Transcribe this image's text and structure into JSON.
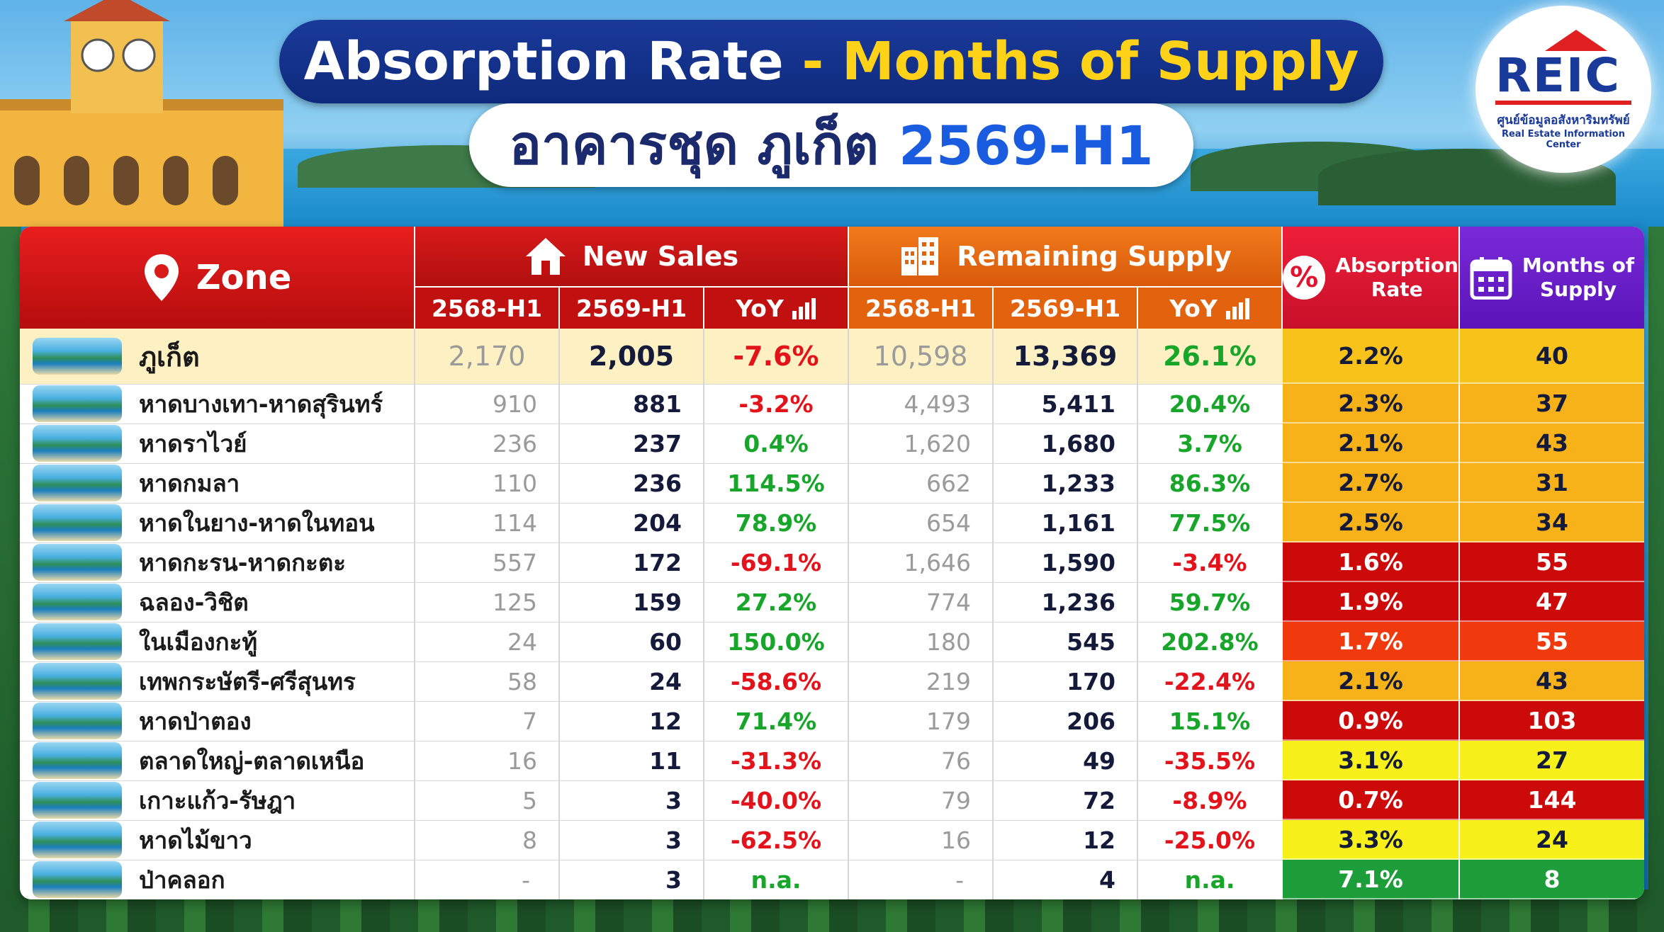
{
  "title": {
    "part1": "Absorption Rate",
    "dash": " - ",
    "part2": "Months of Supply"
  },
  "subtitle": {
    "thai": "อาคารชุด ภูเก็ต",
    "period": "2569-H1"
  },
  "logo": {
    "mark": "REIC",
    "thai": "ศูนย์ข้อมูลอสังหาริมทรัพย์",
    "english": "Real Estate Information Center"
  },
  "headers": {
    "zone": "Zone",
    "new_sales": "New Sales",
    "remaining_supply": "Remaining Supply",
    "absorption_rate": [
      "Absorption",
      "Rate"
    ],
    "months_of_supply": [
      "Months of",
      "Supply"
    ],
    "sub": [
      "2568-H1",
      "2569-H1",
      "YoY"
    ]
  },
  "colors": {
    "red_header": "#d81a1a",
    "orange_header": "#f27a1c",
    "purple_header": "#6a1fc8",
    "total_row": "#fdf0c2",
    "green": "#17a62a",
    "red": "#e3131b",
    "status_orange": "#f7b21a",
    "status_red": "#cc0a0a",
    "status_orangered": "#f03a0e",
    "status_yellow": "#f7f01a",
    "status_green": "#1e9e3a"
  },
  "chart_data": {
    "type": "table",
    "columns": [
      "Zone",
      "New Sales 2568-H1",
      "New Sales 2569-H1",
      "New Sales YoY",
      "Remaining Supply 2568-H1",
      "Remaining Supply 2569-H1",
      "Remaining Supply YoY",
      "Absorption Rate",
      "Months of Supply"
    ],
    "rows": [
      {
        "zone": "ภูเก็ต",
        "ns_prev": "2,170",
        "ns_cur": "2,005",
        "ns_yoy": "-7.6%",
        "rs_prev": "10,598",
        "rs_cur": "13,369",
        "rs_yoy": "26.1%",
        "ar": "2.2%",
        "mos": "40",
        "level": "total"
      },
      {
        "zone": "หาดบางเทา-หาดสุรินทร์",
        "ns_prev": "910",
        "ns_cur": "881",
        "ns_yoy": "-3.2%",
        "rs_prev": "4,493",
        "rs_cur": "5,411",
        "rs_yoy": "20.4%",
        "ar": "2.3%",
        "mos": "37",
        "level": "orange"
      },
      {
        "zone": "หาดราไวย์",
        "ns_prev": "236",
        "ns_cur": "237",
        "ns_yoy": "0.4%",
        "rs_prev": "1,620",
        "rs_cur": "1,680",
        "rs_yoy": "3.7%",
        "ar": "2.1%",
        "mos": "43",
        "level": "orange"
      },
      {
        "zone": "หาดกมลา",
        "ns_prev": "110",
        "ns_cur": "236",
        "ns_yoy": "114.5%",
        "rs_prev": "662",
        "rs_cur": "1,233",
        "rs_yoy": "86.3%",
        "ar": "2.7%",
        "mos": "31",
        "level": "orange"
      },
      {
        "zone": "หาดในยาง-หาดในทอน",
        "ns_prev": "114",
        "ns_cur": "204",
        "ns_yoy": "78.9%",
        "rs_prev": "654",
        "rs_cur": "1,161",
        "rs_yoy": "77.5%",
        "ar": "2.5%",
        "mos": "34",
        "level": "orange"
      },
      {
        "zone": "หาดกะรน-หาดกะตะ",
        "ns_prev": "557",
        "ns_cur": "172",
        "ns_yoy": "-69.1%",
        "rs_prev": "1,646",
        "rs_cur": "1,590",
        "rs_yoy": "-3.4%",
        "ar": "1.6%",
        "mos": "55",
        "level": "red"
      },
      {
        "zone": "ฉลอง-วิชิต",
        "ns_prev": "125",
        "ns_cur": "159",
        "ns_yoy": "27.2%",
        "rs_prev": "774",
        "rs_cur": "1,236",
        "rs_yoy": "59.7%",
        "ar": "1.9%",
        "mos": "47",
        "level": "red"
      },
      {
        "zone": "ในเมืองกะทู้",
        "ns_prev": "24",
        "ns_cur": "60",
        "ns_yoy": "150.0%",
        "rs_prev": "180",
        "rs_cur": "545",
        "rs_yoy": "202.8%",
        "ar": "1.7%",
        "mos": "55",
        "level": "orangered"
      },
      {
        "zone": "เทพกระษัตรี-ศรีสุนทร",
        "ns_prev": "58",
        "ns_cur": "24",
        "ns_yoy": "-58.6%",
        "rs_prev": "219",
        "rs_cur": "170",
        "rs_yoy": "-22.4%",
        "ar": "2.1%",
        "mos": "43",
        "level": "orange"
      },
      {
        "zone": "หาดป่าตอง",
        "ns_prev": "7",
        "ns_cur": "12",
        "ns_yoy": "71.4%",
        "rs_prev": "179",
        "rs_cur": "206",
        "rs_yoy": "15.1%",
        "ar": "0.9%",
        "mos": "103",
        "level": "red"
      },
      {
        "zone": "ตลาดใหญ่-ตลาดเหนือ",
        "ns_prev": "16",
        "ns_cur": "11",
        "ns_yoy": "-31.3%",
        "rs_prev": "76",
        "rs_cur": "49",
        "rs_yoy": "-35.5%",
        "ar": "3.1%",
        "mos": "27",
        "level": "yellow"
      },
      {
        "zone": "เกาะแก้ว-รัษฎา",
        "ns_prev": "5",
        "ns_cur": "3",
        "ns_yoy": "-40.0%",
        "rs_prev": "79",
        "rs_cur": "72",
        "rs_yoy": "-8.9%",
        "ar": "0.7%",
        "mos": "144",
        "level": "red"
      },
      {
        "zone": "หาดไม้ขาว",
        "ns_prev": "8",
        "ns_cur": "3",
        "ns_yoy": "-62.5%",
        "rs_prev": "16",
        "rs_cur": "12",
        "rs_yoy": "-25.0%",
        "ar": "3.3%",
        "mos": "24",
        "level": "yellow"
      },
      {
        "zone": "ป่าคลอก",
        "ns_prev": "-",
        "ns_cur": "3",
        "ns_yoy": "n.a.",
        "rs_prev": "-",
        "rs_cur": "4",
        "rs_yoy": "n.a.",
        "ar": "7.1%",
        "mos": "8",
        "level": "green"
      }
    ]
  }
}
